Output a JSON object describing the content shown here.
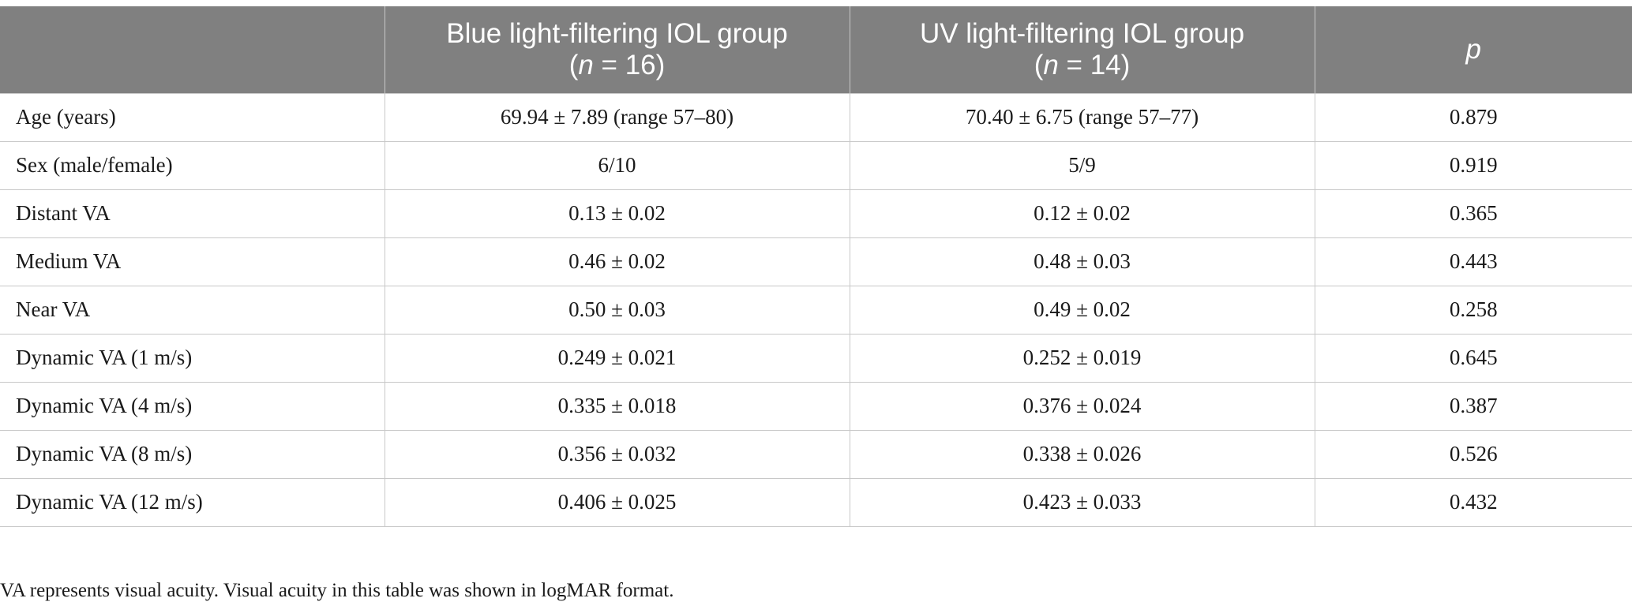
{
  "table": {
    "headers": [
      {
        "line1": "",
        "line2_italic": "",
        "line2_rest": ""
      },
      {
        "line1": "Blue light-filtering IOL group",
        "line2_open": "(",
        "line2_italic": "n",
        "line2_rest": " = 16)"
      },
      {
        "line1": "UV light-filtering IOL group",
        "line2_open": "(",
        "line2_italic": "n",
        "line2_rest": " = 14)"
      },
      {
        "line1_italic": "p"
      }
    ],
    "rows": [
      {
        "label": "Age (years)",
        "blue": "69.94 ± 7.89 (range 57–80)",
        "uv": "70.40 ± 6.75 (range 57–77)",
        "p": "0.879"
      },
      {
        "label": "Sex (male/female)",
        "blue": "6/10",
        "uv": "5/9",
        "p": "0.919"
      },
      {
        "label": "Distant VA",
        "blue": "0.13 ± 0.02",
        "uv": "0.12 ± 0.02",
        "p": "0.365"
      },
      {
        "label": "Medium VA",
        "blue": "0.46 ± 0.02",
        "uv": "0.48 ± 0.03",
        "p": "0.443"
      },
      {
        "label": "Near VA",
        "blue": "0.50 ± 0.03",
        "uv": "0.49 ± 0.02",
        "p": "0.258"
      },
      {
        "label": "Dynamic VA (1 m/s)",
        "blue": "0.249 ± 0.021",
        "uv": "0.252 ± 0.019",
        "p": "0.645"
      },
      {
        "label": "Dynamic VA (4 m/s)",
        "blue": "0.335 ± 0.018",
        "uv": "0.376 ± 0.024",
        "p": "0.387"
      },
      {
        "label": "Dynamic VA (8 m/s)",
        "blue": "0.356 ± 0.032",
        "uv": "0.338 ± 0.026",
        "p": "0.526"
      },
      {
        "label": "Dynamic VA (12 m/s)",
        "blue": "0.406 ± 0.025",
        "uv": "0.423 ± 0.033",
        "p": "0.432"
      }
    ]
  },
  "footnote": "VA represents visual acuity. Visual acuity in this table was shown in logMAR format.",
  "colors": {
    "header_bg": "#808080",
    "header_text": "#ffffff",
    "grid": "#c8c8c8"
  }
}
